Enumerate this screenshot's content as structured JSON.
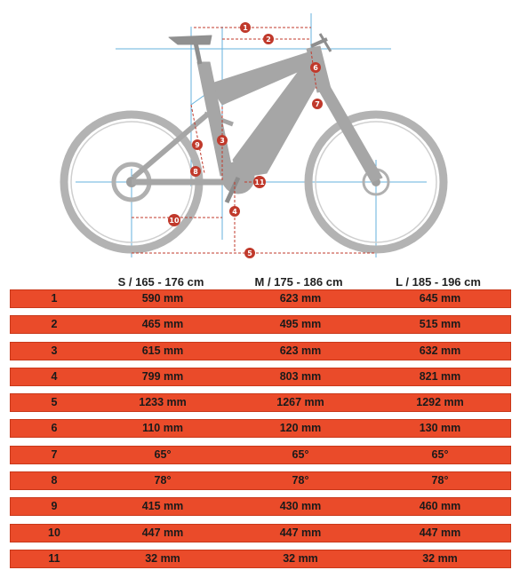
{
  "diagram": {
    "markers": [
      "1",
      "2",
      "3",
      "4",
      "5",
      "6",
      "7",
      "8",
      "9",
      "10",
      "11"
    ],
    "colors": {
      "frame": "#a9a9a9",
      "wheel": "#b3b3b3",
      "line": "#66b2dd",
      "dim": "#c0392b",
      "badge": "#c0392b"
    }
  },
  "table": {
    "headers": [
      "",
      "S / 165 - 176 cm",
      "M / 175 - 186 cm",
      "L / 185 - 196 cm"
    ],
    "rows": [
      [
        "1",
        "590 mm",
        "623 mm",
        "645 mm"
      ],
      [
        "2",
        "465 mm",
        "495 mm",
        "515 mm"
      ],
      [
        "3",
        "615 mm",
        "623 mm",
        "632 mm"
      ],
      [
        "4",
        "799 mm",
        "803 mm",
        "821 mm"
      ],
      [
        "5",
        "1233 mm",
        "1267 mm",
        "1292 mm"
      ],
      [
        "6",
        "110 mm",
        "120 mm",
        "130 mm"
      ],
      [
        "7",
        "65°",
        "65°",
        "65°"
      ],
      [
        "8",
        "78°",
        "78°",
        "78°"
      ],
      [
        "9",
        "415 mm",
        "430 mm",
        "460 mm"
      ],
      [
        "10",
        "447 mm",
        "447 mm",
        "447 mm"
      ],
      [
        "11",
        "32 mm",
        "32 mm",
        "32 mm"
      ]
    ],
    "colors": {
      "row_bg": "#ea4b2a",
      "text": "#1a1a1a"
    }
  }
}
